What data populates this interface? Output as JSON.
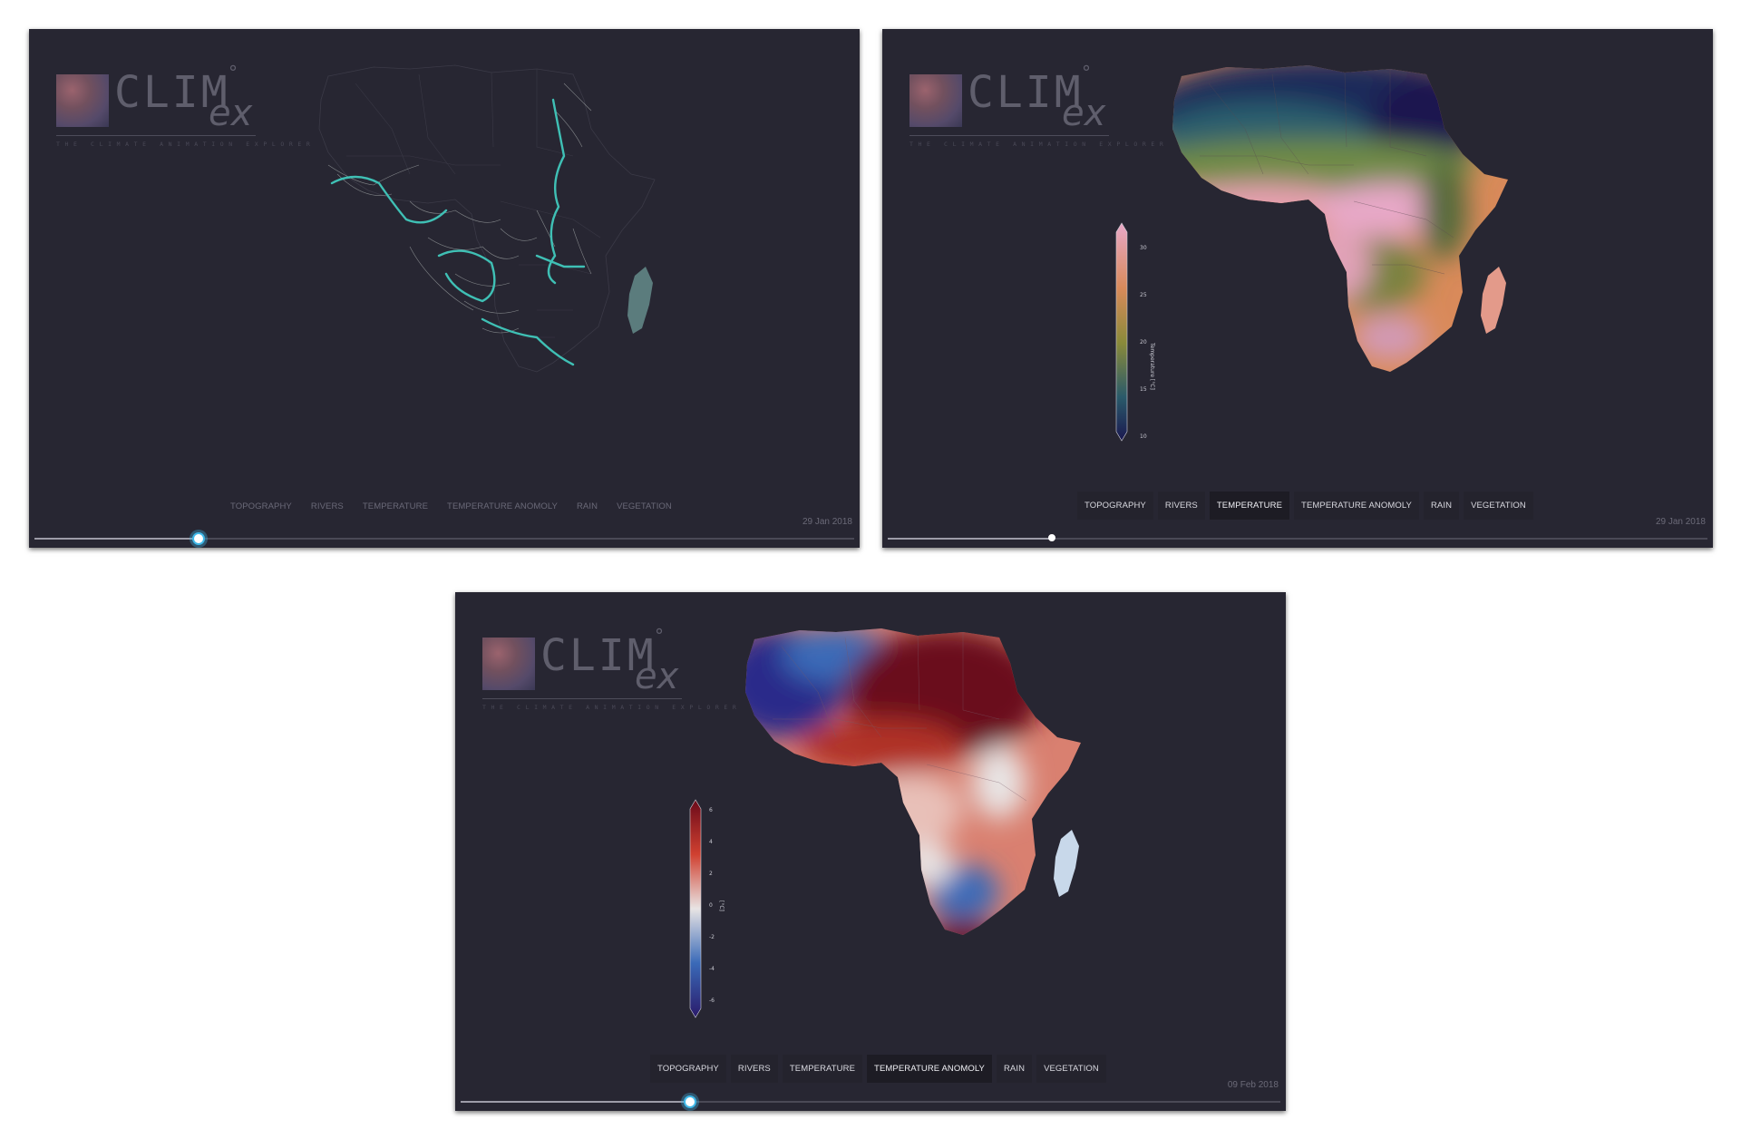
{
  "logo": {
    "title": "CLIM",
    "degree": "°",
    "suffix": "ex",
    "tagline": "THE CLIMATE ANIMATION EXPLORER"
  },
  "tabs": [
    "TOPOGRAPHY",
    "RIVERS",
    "TEMPERATURE",
    "TEMPERATURE ANOMOLY",
    "RAIN",
    "VEGETATION"
  ],
  "panels": [
    {
      "view": "rivers",
      "active_tab": "",
      "date": "29 Jan 2018",
      "slider_progress": 0.2
    },
    {
      "view": "temperature",
      "active_tab": "TEMPERATURE",
      "date": "29 Jan 2018",
      "slider_progress": 0.2,
      "colorbar": {
        "label": "Temperature [°C]",
        "ticks": [
          "30",
          "25",
          "20",
          "15",
          "10"
        ]
      }
    },
    {
      "view": "temperature-anomaly",
      "active_tab": "TEMPERATURE ANOMOLY",
      "date": "09 Feb 2018",
      "slider_progress": 0.28,
      "colorbar": {
        "label": "[°C]",
        "ticks": [
          "6",
          "4",
          "2",
          "0",
          "-2",
          "-4",
          "-6"
        ]
      }
    }
  ],
  "colors": {
    "panel_bg": "#272632",
    "river": "#3fc0b5",
    "slider_accent": "#3fb8e8",
    "temp_scale": [
      "#1b1850",
      "#2a5a6a",
      "#8a8a3a",
      "#d98a5a",
      "#e8a8c8"
    ],
    "anomaly_scale": [
      "#2a1a6a",
      "#3a6ab8",
      "#e8e4e4",
      "#d04030",
      "#6a0a1a"
    ]
  }
}
